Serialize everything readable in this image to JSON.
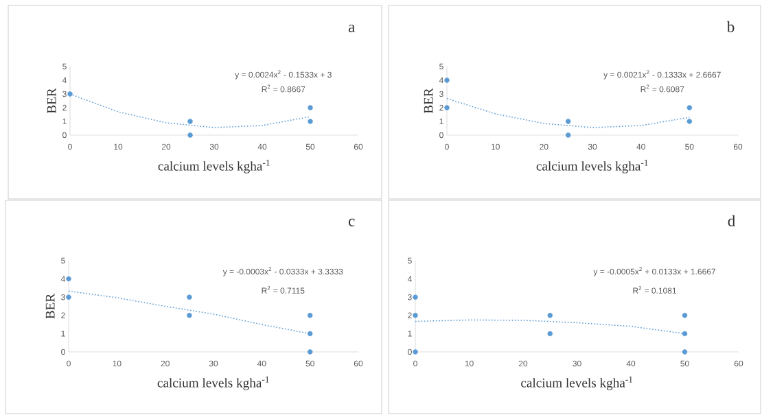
{
  "chart_data": [
    {
      "type": "scatter",
      "title": "a",
      "xlabel": "calcium levels kgha$^{-1}$",
      "ylabel": "BER",
      "xlim": [
        0,
        60
      ],
      "xticks": [
        0,
        10,
        20,
        30,
        40,
        50,
        60
      ],
      "ylim": [
        0,
        5
      ],
      "yticks": [
        0,
        1,
        2,
        3,
        4,
        5
      ],
      "marker": "circle",
      "annotations": [
        "y = 0.0024x$^{2}$ - 0.1533x + 3",
        "R$^{2}$ = 0.8667"
      ],
      "series": [
        {
          "color": "#5b9bd5",
          "x": [
            0,
            25,
            25,
            50,
            50
          ],
          "values": [
            3,
            1,
            0,
            2,
            1
          ]
        },
        {
          "type": "line",
          "color": "#5b9bd5",
          "marker": "none",
          "line_style": "dotted",
          "x": [
            0,
            10,
            20,
            30,
            40,
            50
          ],
          "values": [
            3.0,
            1.7,
            0.9,
            0.55,
            0.7,
            1.35
          ]
        }
      ]
    },
    {
      "type": "scatter",
      "title": "b",
      "xlabel": "calcium levels kgha$^{-1}$",
      "ylabel": "BER",
      "xlim": [
        0,
        60
      ],
      "xticks": [
        0,
        10,
        20,
        30,
        40,
        50,
        60
      ],
      "ylim": [
        0,
        5
      ],
      "yticks": [
        0,
        1,
        2,
        3,
        4,
        5
      ],
      "marker": "circle",
      "annotations": [
        "y = 0.0021x$^{2}$ - 0.1333x + 2.6667",
        "R$^{2}$ = 0.6087"
      ],
      "series": [
        {
          "color": "#5b9bd5",
          "x": [
            0,
            0,
            25,
            25,
            50,
            50
          ],
          "values": [
            4,
            2,
            1,
            0,
            2,
            1
          ]
        },
        {
          "type": "line",
          "color": "#5b9bd5",
          "marker": "none",
          "line_style": "dotted",
          "x": [
            0,
            10,
            20,
            30,
            40,
            50
          ],
          "values": [
            2.67,
            1.55,
            0.85,
            0.55,
            0.7,
            1.3
          ]
        }
      ]
    },
    {
      "type": "scatter",
      "title": "c",
      "xlabel": "calcium levels kgha$^{-1}$",
      "ylabel": "BER",
      "xlim": [
        0,
        60
      ],
      "xticks": [
        0,
        10,
        20,
        30,
        40,
        50,
        60
      ],
      "ylim": [
        0,
        5
      ],
      "yticks": [
        0,
        1,
        2,
        3,
        4,
        5
      ],
      "marker": "circle",
      "annotations": [
        "y = -0.0003x$^{2}$ - 0.0333x + 3.3333",
        "R$^{2}$ = 0.7115"
      ],
      "series": [
        {
          "color": "#5b9bd5",
          "x": [
            0,
            0,
            25,
            25,
            50,
            50,
            50
          ],
          "values": [
            4,
            3,
            3,
            2,
            2,
            1,
            0
          ]
        },
        {
          "type": "line",
          "color": "#5b9bd5",
          "marker": "none",
          "line_style": "dotted",
          "x": [
            0,
            10,
            20,
            30,
            40,
            50
          ],
          "values": [
            3.33,
            2.97,
            2.5,
            2.07,
            1.5,
            1.0
          ]
        }
      ]
    },
    {
      "type": "scatter",
      "title": "d",
      "xlabel": "calcium levels kgha$^{-1}$",
      "xlim": [
        0,
        60
      ],
      "xticks": [
        0,
        10,
        20,
        30,
        40,
        50,
        60
      ],
      "ylim": [
        0,
        5
      ],
      "yticks": [
        0,
        1,
        2,
        3,
        4,
        5
      ],
      "marker": "circle",
      "annotations": [
        "y = -0.0005x$^{2}$ + 0.0133x + 1.6667",
        "R$^{2}$ = 0.1081"
      ],
      "series": [
        {
          "color": "#5b9bd5",
          "x": [
            0,
            0,
            0,
            25,
            25,
            50,
            50,
            50
          ],
          "values": [
            3,
            2,
            0,
            2,
            1,
            2,
            1,
            0
          ]
        },
        {
          "type": "line",
          "color": "#5b9bd5",
          "marker": "none",
          "line_style": "dotted",
          "x": [
            0,
            10,
            20,
            30,
            40,
            50
          ],
          "values": [
            1.67,
            1.75,
            1.73,
            1.6,
            1.4,
            1.0
          ]
        }
      ]
    }
  ]
}
